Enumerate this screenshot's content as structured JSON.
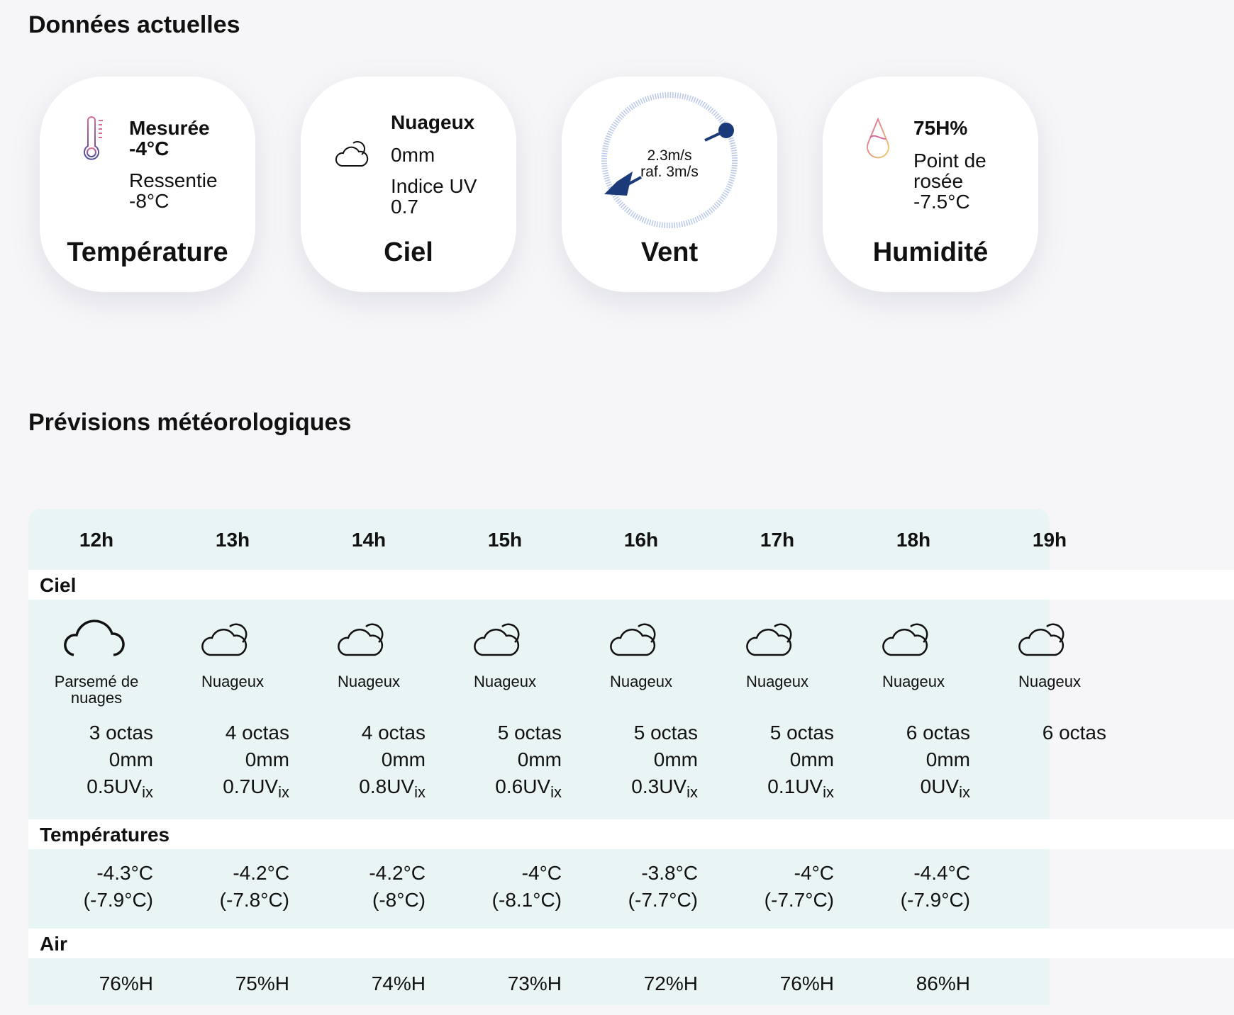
{
  "current": {
    "heading": "Données actuelles",
    "temperature": {
      "title": "Température",
      "measured_label": "Mesurée",
      "measured": "-4°C",
      "felt_label": "Ressentie",
      "felt": "-8°C",
      "icon": "thermometer-icon"
    },
    "sky": {
      "title": "Ciel",
      "condition": "Nuageux",
      "precip": "0mm",
      "uv_label": "Indice UV",
      "uv": "0.7",
      "icon": "cloudy-icon"
    },
    "wind": {
      "title": "Vent",
      "speed": "2.3m/s",
      "gust": "raf. 3m/s",
      "icon": "wind-compass-icon"
    },
    "humidity": {
      "title": "Humidité",
      "value": "75H%",
      "dew_label": "Point de rosée",
      "dew": "-7.5°C",
      "icon": "droplet-icon"
    }
  },
  "forecast": {
    "heading": "Prévisions météorologiques",
    "sections": {
      "sky": "Ciel",
      "temps": "Températures",
      "air": "Air"
    },
    "hours": [
      {
        "hour": "12h",
        "sky": "Parsemé de nuages",
        "icon": "partly-cloudy-icon",
        "octas": "3 octas",
        "mm": "0mm",
        "uv": "0.5",
        "temp": "-4.3°C",
        "felt": "(-7.9°C)",
        "hum": "76%H"
      },
      {
        "hour": "13h",
        "sky": "Nuageux",
        "icon": "cloudy-icon",
        "octas": "4 octas",
        "mm": "0mm",
        "uv": "0.7",
        "temp": "-4.2°C",
        "felt": "(-7.8°C)",
        "hum": "75%H"
      },
      {
        "hour": "14h",
        "sky": "Nuageux",
        "icon": "cloudy-icon",
        "octas": "4 octas",
        "mm": "0mm",
        "uv": "0.8",
        "temp": "-4.2°C",
        "felt": "(-8°C)",
        "hum": "74%H"
      },
      {
        "hour": "15h",
        "sky": "Nuageux",
        "icon": "cloudy-icon",
        "octas": "5 octas",
        "mm": "0mm",
        "uv": "0.6",
        "temp": "-4°C",
        "felt": "(-8.1°C)",
        "hum": "73%H"
      },
      {
        "hour": "16h",
        "sky": "Nuageux",
        "icon": "cloudy-icon",
        "octas": "5 octas",
        "mm": "0mm",
        "uv": "0.3",
        "temp": "-3.8°C",
        "felt": "(-7.7°C)",
        "hum": "72%H"
      },
      {
        "hour": "17h",
        "sky": "Nuageux",
        "icon": "cloudy-icon",
        "octas": "5 octas",
        "mm": "0mm",
        "uv": "0.1",
        "temp": "-4°C",
        "felt": "(-7.7°C)",
        "hum": "76%H"
      },
      {
        "hour": "18h",
        "sky": "Nuageux",
        "icon": "cloudy-icon",
        "octas": "6 octas",
        "mm": "0mm",
        "uv": "0",
        "temp": "-4.4°C",
        "felt": "(-7.9°C)",
        "hum": "86%H"
      },
      {
        "hour": "19h",
        "sky": "Nuageux",
        "icon": "cloudy-icon",
        "octas": "6 octas"
      }
    ],
    "uv_unit": "UV",
    "uv_sub": "ix"
  },
  "colors": {
    "wind": "#1a3a7a",
    "table_bg": "#e9f4f5"
  }
}
